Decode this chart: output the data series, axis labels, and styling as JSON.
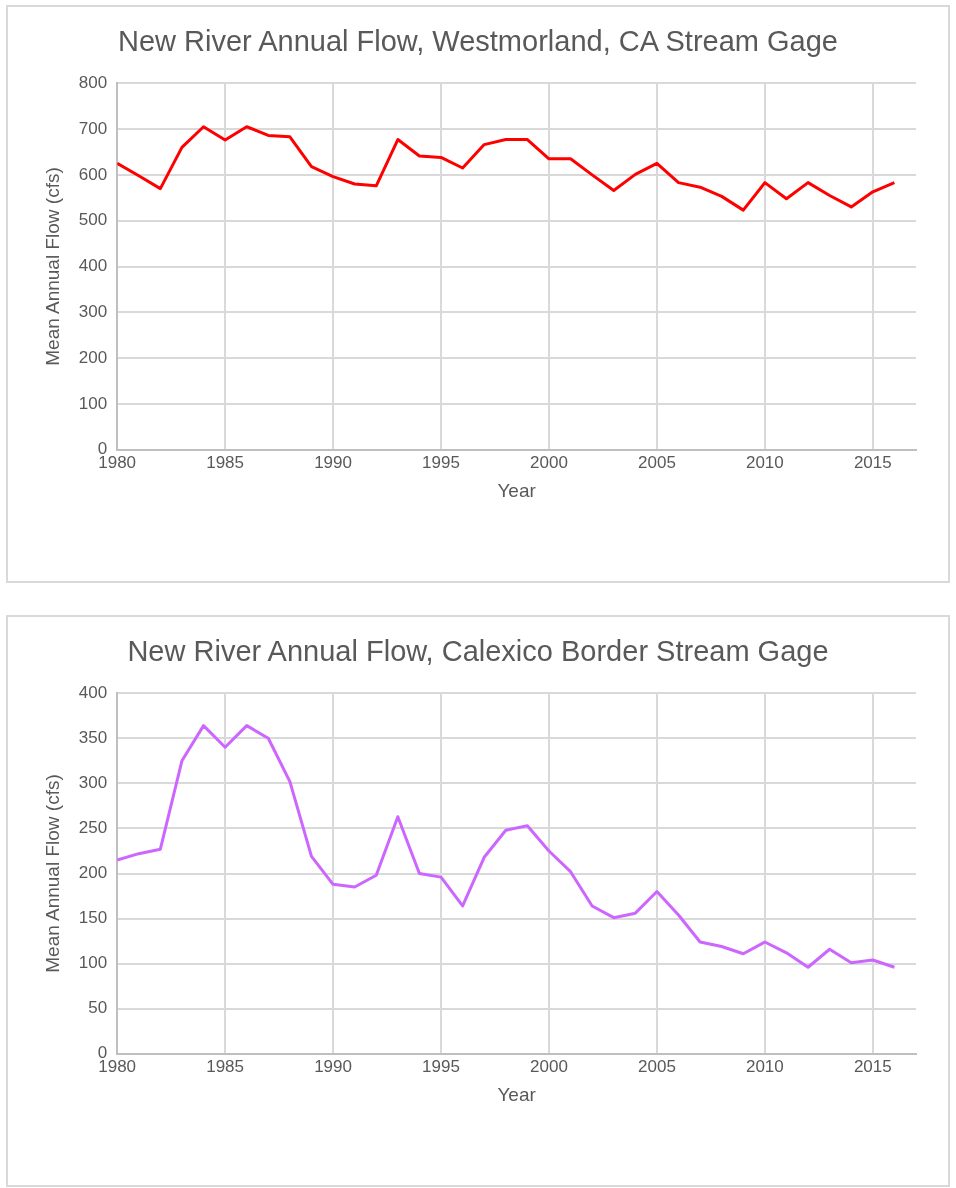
{
  "chart_data": [
    {
      "type": "line",
      "title": "New River Annual Flow, Westmorland, CA Stream Gage",
      "xlabel": "Year",
      "ylabel": "Mean Annual Flow (cfs)",
      "x": [
        1980,
        1981,
        1982,
        1983,
        1984,
        1985,
        1986,
        1987,
        1988,
        1989,
        1990,
        1991,
        1992,
        1993,
        1994,
        1995,
        1996,
        1997,
        1998,
        1999,
        2000,
        2001,
        2002,
        2003,
        2004,
        2005,
        2006,
        2007,
        2008,
        2009,
        2010,
        2011,
        2012,
        2013,
        2014,
        2015,
        2016
      ],
      "series": [
        {
          "color": "#ff0000",
          "values": [
            625,
            598,
            570,
            660,
            705,
            676,
            705,
            686,
            683,
            618,
            596,
            580,
            576,
            677,
            641,
            638,
            615,
            666,
            677,
            677,
            635,
            635,
            600,
            566,
            601,
            625,
            583,
            573,
            553,
            523,
            583,
            548,
            583,
            555,
            530,
            563,
            583
          ]
        }
      ],
      "xlim": [
        1980,
        2017
      ],
      "xticks": [
        1980,
        1985,
        1990,
        1995,
        2000,
        2005,
        2010,
        2015
      ],
      "ylim": [
        0,
        800
      ],
      "yticks": [
        0,
        100,
        200,
        300,
        400,
        500,
        600,
        700,
        800
      ],
      "grid": true,
      "legend": false,
      "marker": "none",
      "line_style": "solid"
    },
    {
      "type": "line",
      "title": "New River Annual Flow, Calexico Border Stream Gage",
      "xlabel": "Year",
      "ylabel": "Mean Annual Flow (cfs)",
      "x": [
        1980,
        1981,
        1982,
        1983,
        1984,
        1985,
        1986,
        1987,
        1988,
        1989,
        1990,
        1991,
        1992,
        1993,
        1994,
        1995,
        1996,
        1997,
        1998,
        1999,
        2000,
        2001,
        2002,
        2003,
        2004,
        2005,
        2006,
        2007,
        2008,
        2009,
        2010,
        2011,
        2012,
        2013,
        2014,
        2015,
        2016
      ],
      "series": [
        {
          "color": "#cc66ff",
          "values": [
            215,
            222,
            227,
            325,
            364,
            340,
            364,
            350,
            302,
            219,
            188,
            185,
            198,
            263,
            200,
            196,
            164,
            218,
            248,
            253,
            225,
            202,
            164,
            151,
            156,
            180,
            154,
            124,
            119,
            111,
            124,
            112,
            96,
            116,
            101,
            104,
            96
          ]
        }
      ],
      "xlim": [
        1980,
        2017
      ],
      "xticks": [
        1980,
        1985,
        1990,
        1995,
        2000,
        2005,
        2010,
        2015
      ],
      "ylim": [
        0,
        400
      ],
      "yticks": [
        0,
        50,
        100,
        150,
        200,
        250,
        300,
        350,
        400
      ],
      "grid": true,
      "legend": false,
      "marker": "none",
      "line_style": "solid"
    }
  ]
}
